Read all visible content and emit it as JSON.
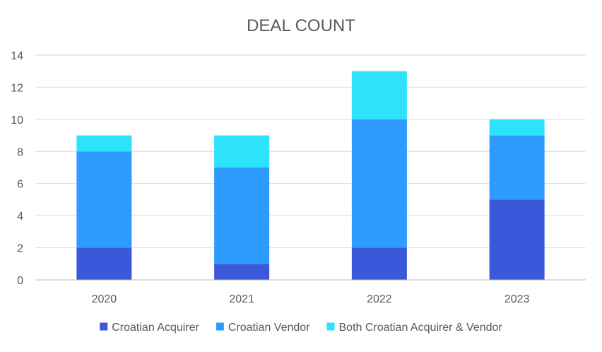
{
  "chart_data": {
    "type": "bar",
    "stacked": true,
    "title": "DEAL COUNT",
    "categories": [
      "2020",
      "2021",
      "2022",
      "2023"
    ],
    "series": [
      {
        "name": "Croatian Acquirer",
        "values": [
          2,
          1,
          2,
          5
        ],
        "color": "#3b58db"
      },
      {
        "name": "Croatian Vendor",
        "values": [
          6,
          6,
          8,
          4
        ],
        "color": "#2e9bff"
      },
      {
        "name": "Both Croatian Acquirer & Vendor",
        "values": [
          1,
          2,
          3,
          1
        ],
        "color": "#2fe2fb"
      }
    ],
    "ylim": [
      0,
      14
    ],
    "yticks": [
      "0",
      "2",
      "4",
      "6",
      "8",
      "10",
      "12",
      "14"
    ],
    "grid": true,
    "legend_position": "bottom",
    "colors": {
      "gridline": "#d9d9d9",
      "text": "#595959",
      "axis": "#bfbfbf"
    }
  }
}
